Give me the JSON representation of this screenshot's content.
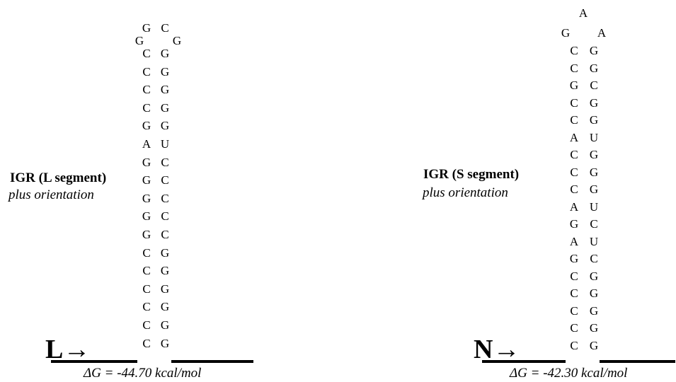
{
  "left": {
    "title": "IGR (L segment)",
    "subtitle": "plus orientation",
    "strand_label": "L→",
    "delta_g": "ΔG = -44.70 kcal/mol",
    "loop": [
      "G",
      "G",
      "C",
      "G"
    ],
    "pairs": [
      [
        "C",
        "G"
      ],
      [
        "C",
        "G"
      ],
      [
        "C",
        "G"
      ],
      [
        "C",
        "G"
      ],
      [
        "G",
        "G"
      ],
      [
        "A",
        "U"
      ],
      [
        "G",
        "C"
      ],
      [
        "G",
        "C"
      ],
      [
        "G",
        "C"
      ],
      [
        "G",
        "C"
      ],
      [
        "G",
        "C"
      ],
      [
        "C",
        "G"
      ],
      [
        "C",
        "G"
      ],
      [
        "C",
        "G"
      ],
      [
        "C",
        "G"
      ],
      [
        "C",
        "G"
      ],
      [
        "C",
        "G"
      ]
    ]
  },
  "right": {
    "title": "IGR (S segment)",
    "subtitle": "plus orientation",
    "strand_label": "N→",
    "delta_g": "ΔG = -42.30 kcal/mol",
    "loop": [
      "G",
      "A",
      "A"
    ],
    "pairs": [
      [
        "C",
        "G"
      ],
      [
        "C",
        "G"
      ],
      [
        "G",
        "C"
      ],
      [
        "C",
        "G"
      ],
      [
        "C",
        "G"
      ],
      [
        "A",
        "U"
      ],
      [
        "C",
        "G"
      ],
      [
        "C",
        "G"
      ],
      [
        "C",
        "G"
      ],
      [
        "A",
        "U"
      ],
      [
        "G",
        "C"
      ],
      [
        "A",
        "U"
      ],
      [
        "G",
        "C"
      ],
      [
        "C",
        "G"
      ],
      [
        "C",
        "G"
      ],
      [
        "C",
        "G"
      ],
      [
        "C",
        "G"
      ],
      [
        "C",
        "G"
      ]
    ]
  }
}
